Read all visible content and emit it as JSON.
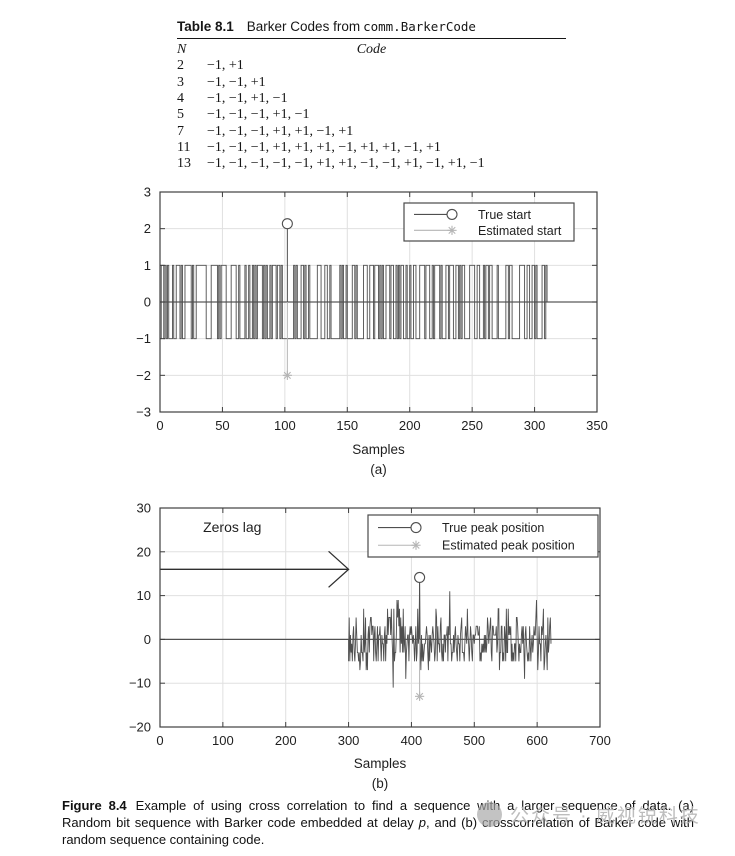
{
  "colors": {
    "line_dark": "#4f4f4f",
    "line_light": "#b5b5b5",
    "grid": "#e0e0e0",
    "axis": "#3f3f3f",
    "zero_line": "#5a5a5a",
    "label": "#1f1f1f"
  },
  "table": {
    "title_label": "Table 8.1",
    "title_text": "Barker Codes from",
    "title_code": "comm.BarkerCode",
    "col_n_header": "N",
    "col_code_header": "Code",
    "rows": [
      {
        "n": "2",
        "code": "−1, +1"
      },
      {
        "n": "3",
        "code": "−1, −1, +1"
      },
      {
        "n": "4",
        "code": "−1, −1, +1, −1"
      },
      {
        "n": "5",
        "code": "−1, −1, −1, +1, −1"
      },
      {
        "n": "7",
        "code": "−1, −1, −1, +1, +1, −1, +1"
      },
      {
        "n": "11",
        "code": "−1, −1, −1, +1, +1, +1, −1, +1, +1, −1, +1"
      },
      {
        "n": "13",
        "code": "−1, −1, −1, −1, −1, +1, +1, −1, −1, +1, −1, +1, −1"
      }
    ]
  },
  "chart_data": [
    {
      "id": "a",
      "type": "line",
      "subtype": "random-bit-sequence-steps",
      "xlabel": "Samples",
      "sublabel": "(a)",
      "xlim": [
        0,
        350
      ],
      "ylim": [
        -3,
        3
      ],
      "xticks": [
        0,
        50,
        100,
        150,
        200,
        250,
        300,
        350
      ],
      "yticks": [
        -3,
        -2,
        -1,
        0,
        1,
        2,
        3
      ],
      "grid": true,
      "zero_line": true,
      "signal": {
        "start": 0,
        "end": 310,
        "levels": [
          -1,
          1
        ],
        "seed": 987654321
      },
      "markers": [
        {
          "name": "true-start",
          "x": 102,
          "y": 2,
          "marker": "circle",
          "stem_from": 0,
          "color": "#4f4f4f"
        },
        {
          "name": "estimated-start",
          "x": 102,
          "y": -2,
          "marker": "asterisk",
          "stem_from": 0,
          "color": "#b5b5b5"
        }
      ],
      "legend_position": "upper right",
      "legend": [
        {
          "label": "True start",
          "marker": "circle",
          "color": "#4f4f4f"
        },
        {
          "label": "Estimated start",
          "marker": "asterisk",
          "color": "#b5b5b5"
        }
      ]
    },
    {
      "id": "b",
      "type": "line",
      "subtype": "crosscorrelation",
      "xlabel": "Samples",
      "sublabel": "(b)",
      "xlim": [
        0,
        700
      ],
      "ylim": [
        -20,
        30
      ],
      "xticks": [
        0,
        100,
        200,
        300,
        400,
        500,
        600,
        700
      ],
      "yticks": [
        -20,
        -10,
        0,
        10,
        20,
        30
      ],
      "grid": true,
      "zero_line": true,
      "noise": {
        "start": 300,
        "end": 622,
        "code_length": 13,
        "seed": 123456789,
        "forced": {
          "413": 13,
          "371": -11
        }
      },
      "annotation": {
        "text": "Zeros lag",
        "text_x": 115,
        "text_y": 24.5,
        "arrow_y": 16,
        "arrow_x0": 0,
        "arrow_x1": 300
      },
      "markers": [
        {
          "name": "true-peak",
          "x": 413,
          "y": 13,
          "marker": "circle",
          "stem_from": 0,
          "color": "#4f4f4f"
        },
        {
          "name": "estimated-peak",
          "x": 413,
          "y": -13,
          "marker": "asterisk",
          "stem_from": 0,
          "color": "#b5b5b5"
        }
      ],
      "legend_position": "upper right",
      "legend": [
        {
          "label": "True peak position",
          "marker": "circle",
          "color": "#4f4f4f"
        },
        {
          "label": "Estimated peak position",
          "marker": "asterisk",
          "color": "#b5b5b5"
        }
      ]
    }
  ],
  "caption": {
    "label": "Figure 8.4",
    "part1": "Example of using cross correlation to find a sequence with a larger sequence of data. (a) Random bit sequence with Barker code embedded at delay ",
    "italic": "p",
    "part2": ", and (b) crosscorrelation of Barker code with random sequence containing code."
  },
  "watermark": {
    "text": "公众号 · 威视锐科技"
  }
}
